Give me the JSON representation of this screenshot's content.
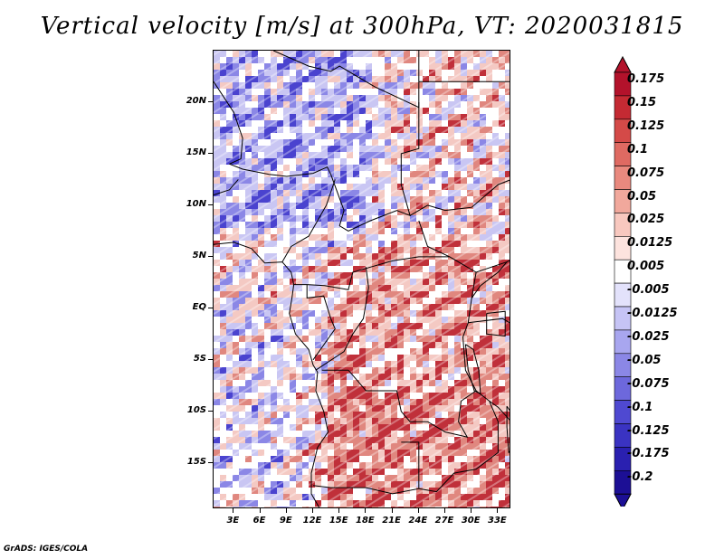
{
  "title": "Vertical velocity [m/s] at 300hPa, VT: 2020031815",
  "footer": "GrADS: IGES/COLA",
  "lat_labels": [
    "20N",
    "15N",
    "10N",
    "5N",
    "EQ",
    "5S",
    "10S",
    "15S"
  ],
  "lat_values": [
    20,
    15,
    10,
    5,
    0,
    -5,
    -10,
    -15
  ],
  "lon_labels": [
    "3E",
    "6E",
    "9E",
    "12E",
    "15E",
    "18E",
    "21E",
    "24E",
    "27E",
    "30E",
    "33E"
  ],
  "lon_values": [
    3,
    6,
    9,
    12,
    15,
    18,
    21,
    24,
    27,
    30,
    33
  ],
  "map_extent": {
    "lon_min": 0.7,
    "lon_max": 34.5,
    "lat_min": -19.5,
    "lat_max": 25.0
  },
  "colorbar": {
    "labels": [
      "0.175",
      "0.15",
      "0.125",
      "0.1",
      "0.075",
      "0.05",
      "0.025",
      "0.0125",
      "0.005",
      "-0.005",
      "-0.0125",
      "-0.025",
      "-0.05",
      "-0.075",
      "-0.1",
      "-0.125",
      "-0.175",
      "-0.2"
    ],
    "colors": [
      "#b3122b",
      "#c42a33",
      "#d44a48",
      "#df6a62",
      "#e9897e",
      "#f1a89c",
      "#f8c8bf",
      "#fde3de",
      "#ffffff",
      "#e3e2fb",
      "#c6c4f5",
      "#a8a6ef",
      "#8b87e6",
      "#6d68dc",
      "#4f49d1",
      "#3a33c2",
      "#2a20b0",
      "#1c0f95"
    ],
    "top_color": "#b3122b",
    "bottom_color": "#1c0f95"
  },
  "field_colors": {
    "strong_up": "#c0303a",
    "up": "#e0877f",
    "weak_up": "#f4c9c3",
    "neutral": "#ffffff",
    "weak_down": "#c9c6f3",
    "down": "#8b87e6",
    "strong_down": "#4a43cf"
  }
}
